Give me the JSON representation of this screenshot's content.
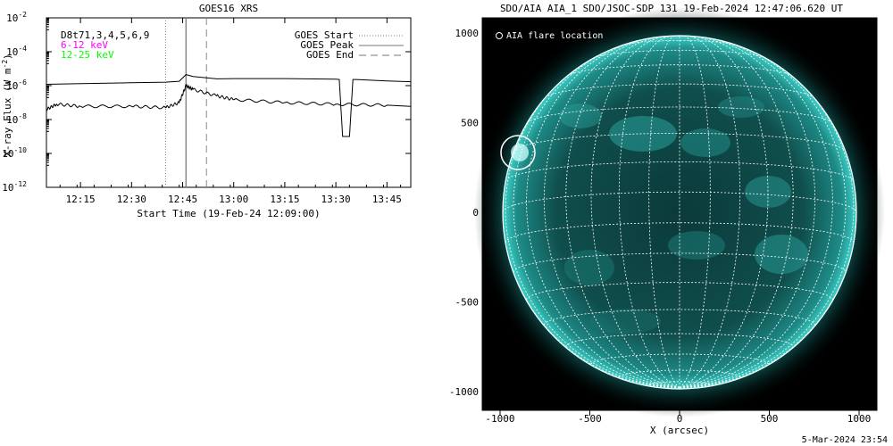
{
  "chart_data": [
    {
      "type": "line",
      "title": "GOES16 XRS",
      "ylabel": "X-ray Flux (W m^-2)",
      "ylabel_main": "X-ray Flux (W m",
      "ylabel_exp": "-2",
      "ylabel_close": ")",
      "xlabel": "Start Time (19-Feb-24 12:09:00)",
      "y_scale": "log",
      "ylim": [
        1e-12,
        0.01
      ],
      "xlim": [
        "12:05",
        "13:52"
      ],
      "y_ticks": [
        {
          "value": 0.01,
          "base": "10",
          "exp": "-2"
        },
        {
          "value": 0.0001,
          "base": "10",
          "exp": "-4"
        },
        {
          "value": 1e-06,
          "base": "10",
          "exp": "-6"
        },
        {
          "value": 1e-08,
          "base": "10",
          "exp": "-8"
        },
        {
          "value": 1e-10,
          "base": "10",
          "exp": "-10"
        },
        {
          "value": 1e-12,
          "base": "10",
          "exp": "-12"
        }
      ],
      "x_ticks": [
        "12:15",
        "12:30",
        "12:45",
        "13:00",
        "13:15",
        "13:30",
        "13:45"
      ],
      "annotation": "D8t71,3,4,5,6,9",
      "series": [
        {
          "name": "6-12 keV",
          "color": "#ff00ff",
          "x": [
            "12:05",
            "12:15",
            "12:30",
            "12:40",
            "12:44",
            "12:46",
            "12:48",
            "12:55",
            "13:00",
            "13:15",
            "13:30",
            "13:31",
            "13:32",
            "13:33",
            "13:34",
            "13:35",
            "13:36",
            "13:45",
            "13:52"
          ],
          "y": [
            1.2e-06,
            1.3e-06,
            1.5e-06,
            1.6e-06,
            1.8e-06,
            4.5e-06,
            3.5e-06,
            2.5e-06,
            2.6e-06,
            2.6e-06,
            2.4e-06,
            2.3e-06,
            1e-09,
            1e-09,
            1e-09,
            2.3e-06,
            2.3e-06,
            1.9e-06,
            1.7e-06
          ]
        },
        {
          "name": "12-25 keV",
          "color": "#00ff00",
          "x": [
            "12:05",
            "12:08",
            "12:15",
            "12:30",
            "12:40",
            "12:44",
            "12:46",
            "12:48",
            "12:55",
            "13:00",
            "13:15",
            "13:30",
            "13:45",
            "13:52"
          ],
          "y": [
            4e-08,
            8e-08,
            6e-08,
            6e-08,
            5e-08,
            1e-07,
            1e-06,
            6e-07,
            2.5e-07,
            1.5e-07,
            1e-07,
            8e-08,
            7e-08,
            6e-08
          ]
        }
      ],
      "events": [
        {
          "name": "GOES Start",
          "time": "12:40",
          "style": "dotted"
        },
        {
          "name": "GOES Peak",
          "time": "12:46",
          "style": "solid"
        },
        {
          "name": "GOES End",
          "time": "12:52",
          "style": "dashed"
        }
      ]
    }
  ],
  "aia_image": {
    "title": "SDO/AIA AIA_1 SDO/JSOC-SDP 131 19-Feb-2024 12:47:06.620 UT",
    "xlabel": "X (arcsec)",
    "x_ticks": [
      "-1000",
      "-500",
      "0",
      "500",
      "1000"
    ],
    "y_ticks": [
      "1000",
      "500",
      "0",
      "-500",
      "-1000"
    ],
    "legend": "AIA flare location",
    "legend_icon": "circle-outline-icon",
    "flare_location_arcsec": [
      -900,
      350
    ],
    "disk_color": "#0f5a58",
    "corona_color": "#1f9e9a"
  },
  "footer": {
    "timestamp": "5-Mar-2024 23:54"
  }
}
